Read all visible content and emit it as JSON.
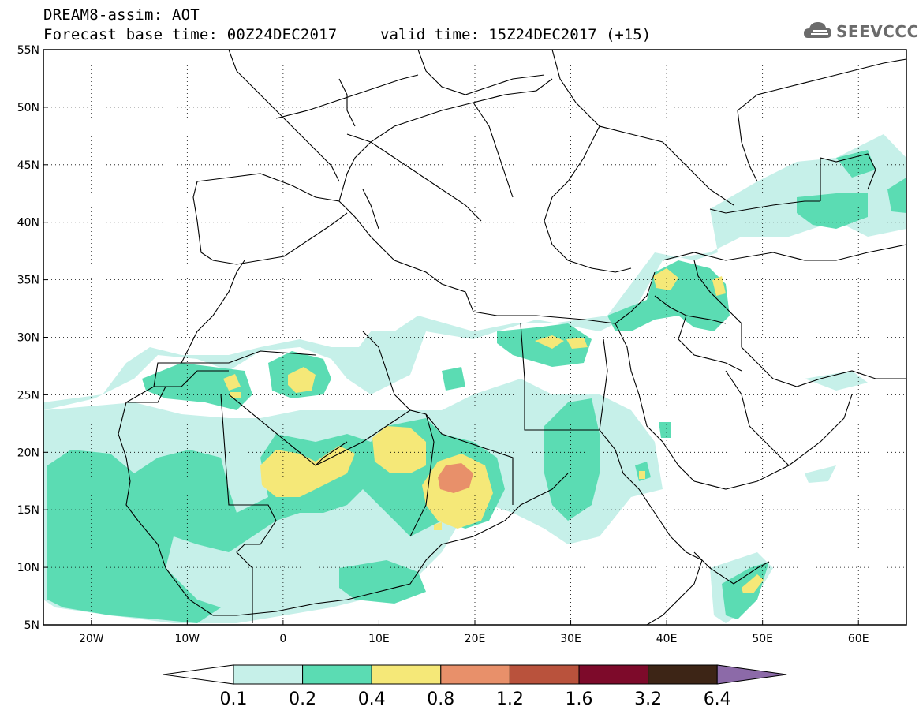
{
  "header": {
    "title": "DREAM8-assim: AOT",
    "base_time": "Forecast base time: 00Z24DEC2017",
    "valid_time": "valid time: 15Z24DEC2017 (+15)",
    "logo_text": "SEEVCCC"
  },
  "map": {
    "lat_range": [
      5,
      55
    ],
    "lon_range": [
      -25,
      65
    ],
    "lat_labels": [
      "55N",
      "50N",
      "45N",
      "40N",
      "35N",
      "30N",
      "25N",
      "20N",
      "15N",
      "10N",
      "5N"
    ],
    "lat_values": [
      55,
      50,
      45,
      40,
      35,
      30,
      25,
      20,
      15,
      10,
      5
    ],
    "lon_labels": [
      "20W",
      "10W",
      "0",
      "10E",
      "20E",
      "30E",
      "40E",
      "50E",
      "60E"
    ],
    "lon_values": [
      -20,
      -10,
      0,
      10,
      20,
      30,
      40,
      50,
      60
    ]
  },
  "colorbar": {
    "labels": [
      "0.1",
      "0.2",
      "0.4",
      "0.8",
      "1.2",
      "1.6",
      "3.2",
      "6.4"
    ],
    "colors": [
      "#c6f0e9",
      "#5bdcb3",
      "#f5e878",
      "#e8906a",
      "#b9523c",
      "#7d0a2a",
      "#3d2516",
      "#8c6aa8"
    ]
  },
  "colors": {
    "level_01": "#c6f0e9",
    "level_02": "#5bdcb3",
    "level_04": "#f5e878",
    "level_08": "#e8906a",
    "level_12": "#b9523c"
  }
}
